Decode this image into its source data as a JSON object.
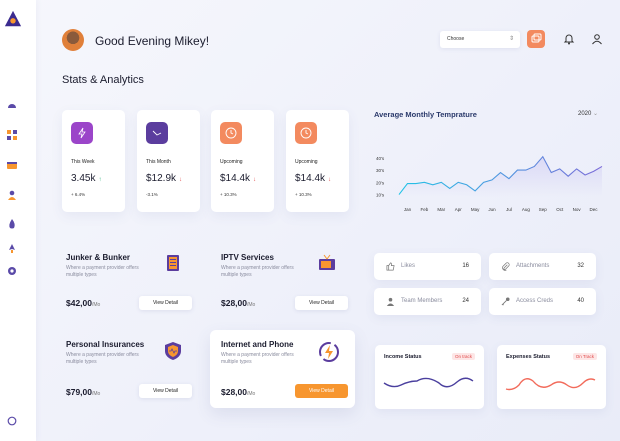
{
  "header": {
    "greeting": "Good Evening Mikey!",
    "select_placeholder": "Choose"
  },
  "section_title": "Stats & Analytics",
  "stats": [
    {
      "label": "This Week",
      "value": "3.45k",
      "arrow": "↑",
      "change": "+ 6.4%",
      "color": "#9b45c9",
      "arrow_color": "#2fb27a"
    },
    {
      "label": "This Month",
      "value": "$12.9k",
      "arrow": "↓",
      "change": "-3.1%",
      "color": "#5b3d9e",
      "arrow_color": "#e14a4a"
    },
    {
      "label": "Upcoming",
      "value": "$14.4k",
      "arrow": "↓",
      "change": "+ 10.3%",
      "color": "#f38a5f",
      "arrow_color": "#e14a4a"
    },
    {
      "label": "Upcoming",
      "value": "$14.4k",
      "arrow": "↓",
      "change": "+ 10.3%",
      "color": "#f38a5f",
      "arrow_color": "#e14a4a"
    }
  ],
  "temperature": {
    "title": "Average Monthly Temprature",
    "year": "2020",
    "chart_data": {
      "type": "line",
      "title": "Average Monthly Temprature",
      "categories": [
        "Jan",
        "Feb",
        "Mar",
        "Apr",
        "May",
        "Jun",
        "Jul",
        "Aug",
        "Sep",
        "Oct",
        "Nov",
        "Dec"
      ],
      "yticks": [
        "40's",
        "30's",
        "20's",
        "10's"
      ],
      "x": [
        0,
        0.5,
        1,
        1.5,
        2,
        2.5,
        3,
        3.5,
        4,
        4.5,
        5,
        5.5,
        6,
        6.5,
        7,
        7.5,
        8,
        8.5,
        9,
        9.5,
        10,
        10.5,
        11,
        11.5,
        12
      ],
      "values": [
        10,
        19,
        19,
        20,
        18,
        20,
        15,
        20,
        18,
        13,
        20,
        22,
        28,
        23,
        30,
        30,
        33,
        41,
        28,
        31,
        25,
        31,
        26,
        29,
        33
      ],
      "ylim": [
        8,
        44
      ],
      "line_colors": [
        "#22c3e6",
        "#7b6bd8"
      ]
    }
  },
  "services": [
    {
      "title": "Junker & Bunker",
      "desc": "Where a payment provider offers multiple types",
      "price": "$42,00",
      "per": "/Mo",
      "button": "View Detail"
    },
    {
      "title": "IPTV Services",
      "desc": "Where a payment provider offers multiple types",
      "price": "$28,00",
      "per": "/Mo",
      "button": "View Detail"
    },
    {
      "title": "Personal Insurances",
      "desc": "Where a payment provider offers multiple types",
      "price": "$79,00",
      "per": "/Mo",
      "button": "View Detail"
    },
    {
      "title": "Internet and Phone",
      "desc": "Where a payment provider offers multiple types",
      "price": "$28,00",
      "per": "/Mo",
      "button": "View Detail"
    }
  ],
  "mini_cards": [
    {
      "label": "Likes",
      "value": "16",
      "icon": "thumbs-up-icon"
    },
    {
      "label": "Attachments",
      "value": "32",
      "icon": "paperclip-icon"
    },
    {
      "label": "Team Members",
      "value": "24",
      "icon": "person-icon"
    },
    {
      "label": "Access Creds",
      "value": "40",
      "icon": "key-icon"
    }
  ],
  "status_cards": [
    {
      "title": "Income Status",
      "badge": "On track",
      "line_color": "#4a3f9e"
    },
    {
      "title": "Expenses Status",
      "badge": "On Track",
      "line_color": "#f26b5b"
    }
  ]
}
